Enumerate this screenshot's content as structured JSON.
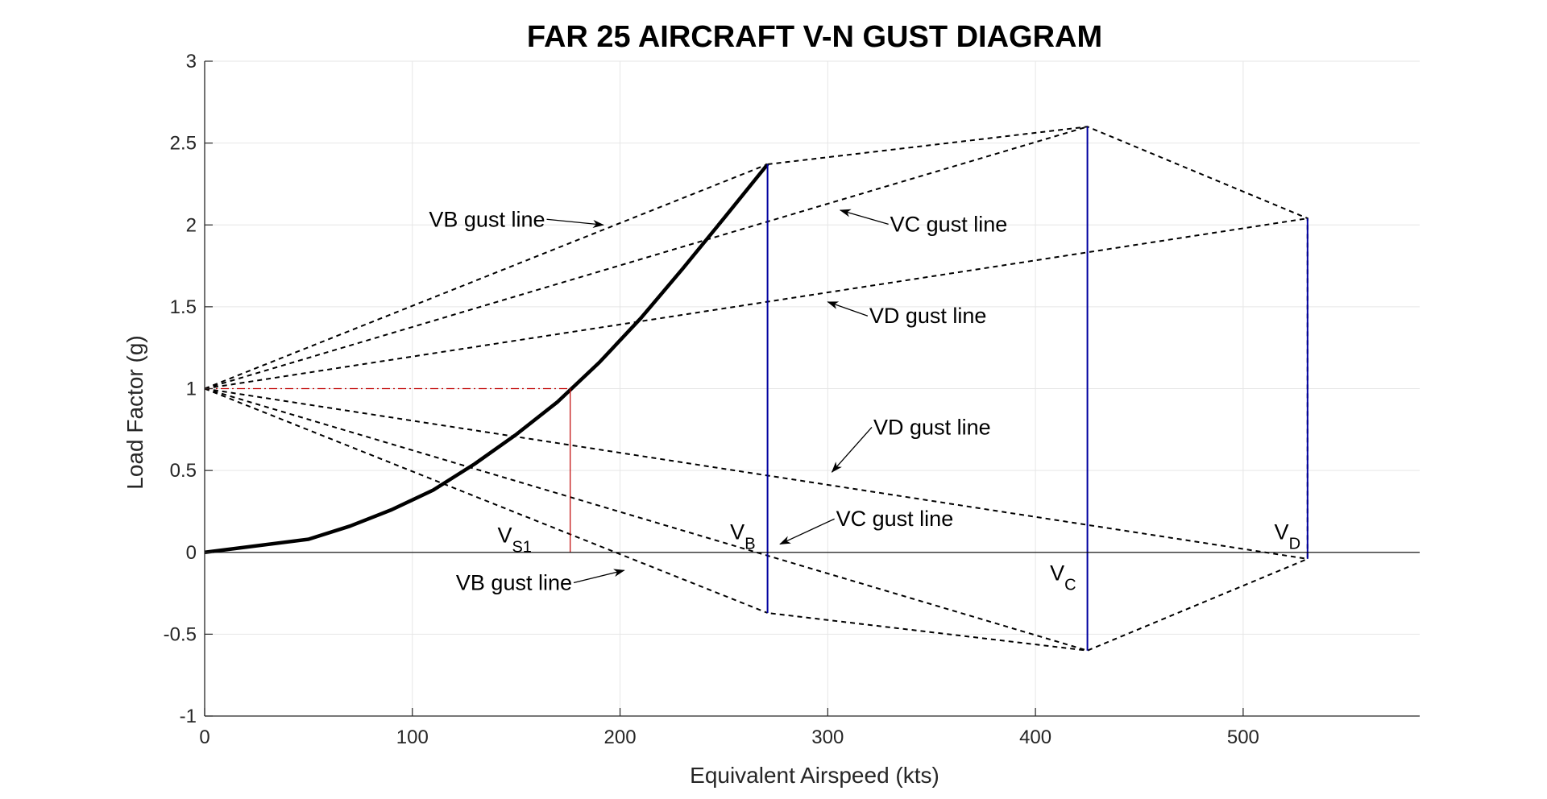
{
  "chart_data": {
    "type": "line",
    "title": "FAR 25 AIRCRAFT V-N GUST DIAGRAM",
    "xlabel": "Equivalent Airspeed (kts)",
    "ylabel": "Load Factor (g)",
    "xlim": [
      0,
      585
    ],
    "ylim": [
      -1,
      3
    ],
    "xticks": [
      0,
      100,
      200,
      300,
      400,
      500
    ],
    "yticks": [
      -1,
      -0.5,
      0,
      0.5,
      1,
      1.5,
      2,
      2.5,
      3
    ],
    "xtick_labels": [
      "0",
      "100",
      "200",
      "300",
      "400",
      "500"
    ],
    "ytick_labels": [
      "-1",
      "-0.5",
      "0",
      "0.5",
      "1",
      "1.5",
      "2",
      "2.5",
      "3"
    ],
    "grid": true,
    "colors": {
      "curve": "#000000",
      "dashed": "#000000",
      "speed_lines": "#0000a0",
      "vs1_lines": "#c00000",
      "zero_line": "#000000",
      "grid": "#e6e6e6"
    },
    "series": [
      {
        "style": "solid-thick",
        "x": [
          0,
          50,
          70,
          90,
          110,
          130,
          150,
          170,
          190,
          210,
          230,
          250,
          271
        ],
        "y": [
          0,
          0.08,
          0.16,
          0.26,
          0.38,
          0.54,
          0.72,
          0.92,
          1.16,
          1.43,
          1.73,
          2.04,
          2.37
        ]
      },
      {
        "style": "dashed",
        "x": [
          0,
          271
        ],
        "y": [
          1,
          2.37
        ]
      },
      {
        "style": "dashed",
        "x": [
          0,
          425
        ],
        "y": [
          1,
          2.6
        ]
      },
      {
        "style": "dashed",
        "x": [
          0,
          531
        ],
        "y": [
          1,
          2.04
        ]
      },
      {
        "style": "dashed",
        "x": [
          0,
          271
        ],
        "y": [
          1,
          -0.37
        ]
      },
      {
        "style": "dashed",
        "x": [
          0,
          425
        ],
        "y": [
          1,
          -0.6
        ]
      },
      {
        "style": "dashed",
        "x": [
          0,
          531
        ],
        "y": [
          1,
          -0.04
        ]
      },
      {
        "style": "dashed",
        "x": [
          271,
          425,
          531,
          531,
          425,
          271
        ],
        "y": [
          2.37,
          2.6,
          2.04,
          -0.04,
          -0.6,
          -0.37
        ]
      },
      {
        "style": "blue-vertical",
        "x": [
          271,
          271
        ],
        "y": [
          -0.37,
          2.37
        ]
      },
      {
        "style": "blue-vertical",
        "x": [
          425,
          425
        ],
        "y": [
          -0.6,
          2.6
        ]
      },
      {
        "style": "blue-vertical",
        "x": [
          531,
          531
        ],
        "y": [
          -0.04,
          2.04
        ]
      },
      {
        "style": "red-dashdot",
        "x": [
          0,
          176
        ],
        "y": [
          1,
          1
        ]
      },
      {
        "style": "red-solid",
        "x": [
          176,
          176
        ],
        "y": [
          0,
          1
        ]
      },
      {
        "style": "zero-line",
        "x": [
          0,
          585
        ],
        "y": [
          0,
          0
        ]
      }
    ],
    "annotations": [
      {
        "text": "VB gust line",
        "x": 108,
        "y": 1.99,
        "arrow_to": [
          192,
          2.0
        ]
      },
      {
        "text": "VC gust line",
        "x": 330,
        "y": 1.96,
        "arrow_to": [
          306,
          2.09
        ]
      },
      {
        "text": "VD gust line",
        "x": 320,
        "y": 1.4,
        "arrow_to": [
          300,
          1.53
        ]
      },
      {
        "text": "VD gust line",
        "x": 322,
        "y": 0.72,
        "arrow_to": [
          302,
          0.49
        ]
      },
      {
        "text": "VC gust line",
        "x": 304,
        "y": 0.16,
        "arrow_to": [
          277,
          0.05
        ]
      },
      {
        "text": "VB gust line",
        "x": 121,
        "y": -0.23,
        "arrow_to": [
          202,
          -0.11
        ]
      }
    ],
    "speed_labels": [
      {
        "main": "V",
        "sub": "S1",
        "x": 141,
        "y": 0.06
      },
      {
        "main": "V",
        "sub": "B",
        "x": 253,
        "y": 0.08
      },
      {
        "main": "V",
        "sub": "C",
        "x": 407,
        "y": -0.17
      },
      {
        "main": "V",
        "sub": "D",
        "x": 515,
        "y": 0.08
      }
    ]
  }
}
